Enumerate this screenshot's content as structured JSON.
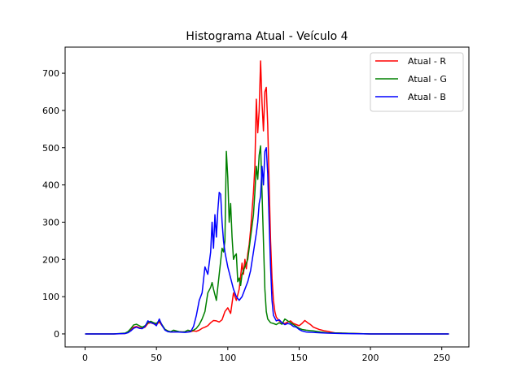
{
  "chart_data": {
    "type": "line",
    "title": "Histograma Atual - Veículo 4",
    "xlabel": "",
    "ylabel": "",
    "xlim": [
      -14,
      269
    ],
    "ylim": [
      -35,
      770
    ],
    "x_ticks": [
      0,
      50,
      100,
      150,
      200,
      250
    ],
    "y_ticks": [
      0,
      100,
      200,
      300,
      400,
      500,
      600,
      700
    ],
    "grid": false,
    "legend_position": "top-right",
    "series": [
      {
        "name": "Atual - R",
        "color": "#ff0000",
        "points": [
          [
            0,
            0
          ],
          [
            20,
            0
          ],
          [
            28,
            1
          ],
          [
            30,
            4
          ],
          [
            32,
            10
          ],
          [
            34,
            18
          ],
          [
            36,
            20
          ],
          [
            38,
            17
          ],
          [
            40,
            15
          ],
          [
            42,
            18
          ],
          [
            44,
            28
          ],
          [
            46,
            30
          ],
          [
            48,
            27
          ],
          [
            50,
            25
          ],
          [
            52,
            32
          ],
          [
            54,
            22
          ],
          [
            56,
            12
          ],
          [
            58,
            8
          ],
          [
            60,
            5
          ],
          [
            65,
            6
          ],
          [
            70,
            5
          ],
          [
            74,
            6
          ],
          [
            76,
            8
          ],
          [
            78,
            7
          ],
          [
            80,
            10
          ],
          [
            82,
            15
          ],
          [
            84,
            18
          ],
          [
            86,
            22
          ],
          [
            88,
            30
          ],
          [
            90,
            36
          ],
          [
            92,
            35
          ],
          [
            94,
            32
          ],
          [
            96,
            38
          ],
          [
            98,
            60
          ],
          [
            100,
            70
          ],
          [
            102,
            55
          ],
          [
            104,
            110
          ],
          [
            106,
            90
          ],
          [
            108,
            120
          ],
          [
            110,
            190
          ],
          [
            111,
            160
          ],
          [
            112,
            200
          ],
          [
            113,
            175
          ],
          [
            114,
            215
          ],
          [
            115,
            240
          ],
          [
            116,
            280
          ],
          [
            117,
            330
          ],
          [
            118,
            380
          ],
          [
            119,
            450
          ],
          [
            120,
            630
          ],
          [
            121,
            540
          ],
          [
            122,
            600
          ],
          [
            123,
            733
          ],
          [
            124,
            620
          ],
          [
            125,
            545
          ],
          [
            126,
            650
          ],
          [
            127,
            662
          ],
          [
            128,
            560
          ],
          [
            129,
            400
          ],
          [
            130,
            250
          ],
          [
            131,
            150
          ],
          [
            132,
            90
          ],
          [
            133,
            60
          ],
          [
            134,
            45
          ],
          [
            136,
            35
          ],
          [
            138,
            30
          ],
          [
            140,
            28
          ],
          [
            142,
            32
          ],
          [
            144,
            35
          ],
          [
            146,
            28
          ],
          [
            148,
            25
          ],
          [
            150,
            22
          ],
          [
            152,
            28
          ],
          [
            154,
            36
          ],
          [
            156,
            30
          ],
          [
            158,
            25
          ],
          [
            160,
            18
          ],
          [
            162,
            15
          ],
          [
            164,
            12
          ],
          [
            166,
            10
          ],
          [
            168,
            8
          ],
          [
            170,
            7
          ],
          [
            172,
            5
          ],
          [
            175,
            3
          ],
          [
            180,
            2
          ],
          [
            190,
            1
          ],
          [
            200,
            0
          ],
          [
            255,
            0
          ]
        ]
      },
      {
        "name": "Atual - G",
        "color": "#008000",
        "points": [
          [
            0,
            0
          ],
          [
            20,
            0
          ],
          [
            28,
            2
          ],
          [
            30,
            6
          ],
          [
            32,
            14
          ],
          [
            34,
            24
          ],
          [
            36,
            26
          ],
          [
            38,
            22
          ],
          [
            40,
            18
          ],
          [
            42,
            22
          ],
          [
            44,
            30
          ],
          [
            46,
            34
          ],
          [
            48,
            30
          ],
          [
            50,
            28
          ],
          [
            52,
            36
          ],
          [
            54,
            24
          ],
          [
            56,
            12
          ],
          [
            58,
            8
          ],
          [
            60,
            6
          ],
          [
            62,
            10
          ],
          [
            64,
            8
          ],
          [
            66,
            6
          ],
          [
            68,
            5
          ],
          [
            70,
            6
          ],
          [
            72,
            10
          ],
          [
            74,
            8
          ],
          [
            76,
            10
          ],
          [
            78,
            15
          ],
          [
            80,
            25
          ],
          [
            82,
            40
          ],
          [
            84,
            60
          ],
          [
            86,
            110
          ],
          [
            88,
            125
          ],
          [
            89,
            138
          ],
          [
            90,
            120
          ],
          [
            92,
            90
          ],
          [
            94,
            160
          ],
          [
            96,
            230
          ],
          [
            97,
            220
          ],
          [
            98,
            250
          ],
          [
            99,
            490
          ],
          [
            100,
            420
          ],
          [
            101,
            300
          ],
          [
            102,
            350
          ],
          [
            103,
            260
          ],
          [
            104,
            200
          ],
          [
            105,
            210
          ],
          [
            106,
            215
          ],
          [
            107,
            140
          ],
          [
            108,
            150
          ],
          [
            109,
            130
          ],
          [
            110,
            160
          ],
          [
            112,
            180
          ],
          [
            114,
            200
          ],
          [
            116,
            260
          ],
          [
            118,
            320
          ],
          [
            119,
            380
          ],
          [
            120,
            450
          ],
          [
            121,
            415
          ],
          [
            122,
            480
          ],
          [
            123,
            505
          ],
          [
            124,
            380
          ],
          [
            125,
            250
          ],
          [
            126,
            120
          ],
          [
            127,
            60
          ],
          [
            128,
            40
          ],
          [
            130,
            30
          ],
          [
            132,
            28
          ],
          [
            134,
            25
          ],
          [
            136,
            30
          ],
          [
            138,
            26
          ],
          [
            140,
            40
          ],
          [
            142,
            35
          ],
          [
            144,
            30
          ],
          [
            146,
            25
          ],
          [
            148,
            20
          ],
          [
            150,
            15
          ],
          [
            152,
            12
          ],
          [
            155,
            10
          ],
          [
            160,
            8
          ],
          [
            165,
            5
          ],
          [
            170,
            3
          ],
          [
            180,
            2
          ],
          [
            190,
            1
          ],
          [
            200,
            0
          ],
          [
            255,
            0
          ]
        ]
      },
      {
        "name": "Atual - B",
        "color": "#0000ff",
        "points": [
          [
            0,
            0
          ],
          [
            20,
            0
          ],
          [
            28,
            1
          ],
          [
            30,
            3
          ],
          [
            32,
            8
          ],
          [
            34,
            15
          ],
          [
            36,
            18
          ],
          [
            38,
            15
          ],
          [
            40,
            14
          ],
          [
            42,
            20
          ],
          [
            44,
            35
          ],
          [
            46,
            30
          ],
          [
            48,
            28
          ],
          [
            50,
            22
          ],
          [
            52,
            40
          ],
          [
            54,
            22
          ],
          [
            56,
            10
          ],
          [
            58,
            6
          ],
          [
            60,
            5
          ],
          [
            65,
            5
          ],
          [
            70,
            4
          ],
          [
            74,
            6
          ],
          [
            76,
            20
          ],
          [
            78,
            50
          ],
          [
            80,
            90
          ],
          [
            82,
            110
          ],
          [
            84,
            180
          ],
          [
            86,
            160
          ],
          [
            88,
            220
          ],
          [
            89,
            300
          ],
          [
            90,
            230
          ],
          [
            91,
            320
          ],
          [
            92,
            260
          ],
          [
            93,
            330
          ],
          [
            94,
            380
          ],
          [
            95,
            375
          ],
          [
            96,
            300
          ],
          [
            97,
            250
          ],
          [
            98,
            220
          ],
          [
            100,
            180
          ],
          [
            102,
            150
          ],
          [
            104,
            120
          ],
          [
            106,
            100
          ],
          [
            108,
            90
          ],
          [
            110,
            100
          ],
          [
            112,
            120
          ],
          [
            114,
            140
          ],
          [
            116,
            170
          ],
          [
            118,
            220
          ],
          [
            120,
            270
          ],
          [
            121,
            300
          ],
          [
            122,
            350
          ],
          [
            123,
            370
          ],
          [
            124,
            450
          ],
          [
            125,
            400
          ],
          [
            126,
            490
          ],
          [
            127,
            500
          ],
          [
            128,
            430
          ],
          [
            129,
            300
          ],
          [
            130,
            180
          ],
          [
            131,
            90
          ],
          [
            132,
            50
          ],
          [
            134,
            35
          ],
          [
            136,
            38
          ],
          [
            138,
            30
          ],
          [
            140,
            25
          ],
          [
            142,
            28
          ],
          [
            144,
            26
          ],
          [
            146,
            20
          ],
          [
            148,
            18
          ],
          [
            150,
            12
          ],
          [
            152,
            8
          ],
          [
            155,
            5
          ],
          [
            160,
            4
          ],
          [
            165,
            3
          ],
          [
            170,
            2
          ],
          [
            180,
            1
          ],
          [
            200,
            0
          ],
          [
            255,
            0
          ]
        ]
      }
    ]
  }
}
